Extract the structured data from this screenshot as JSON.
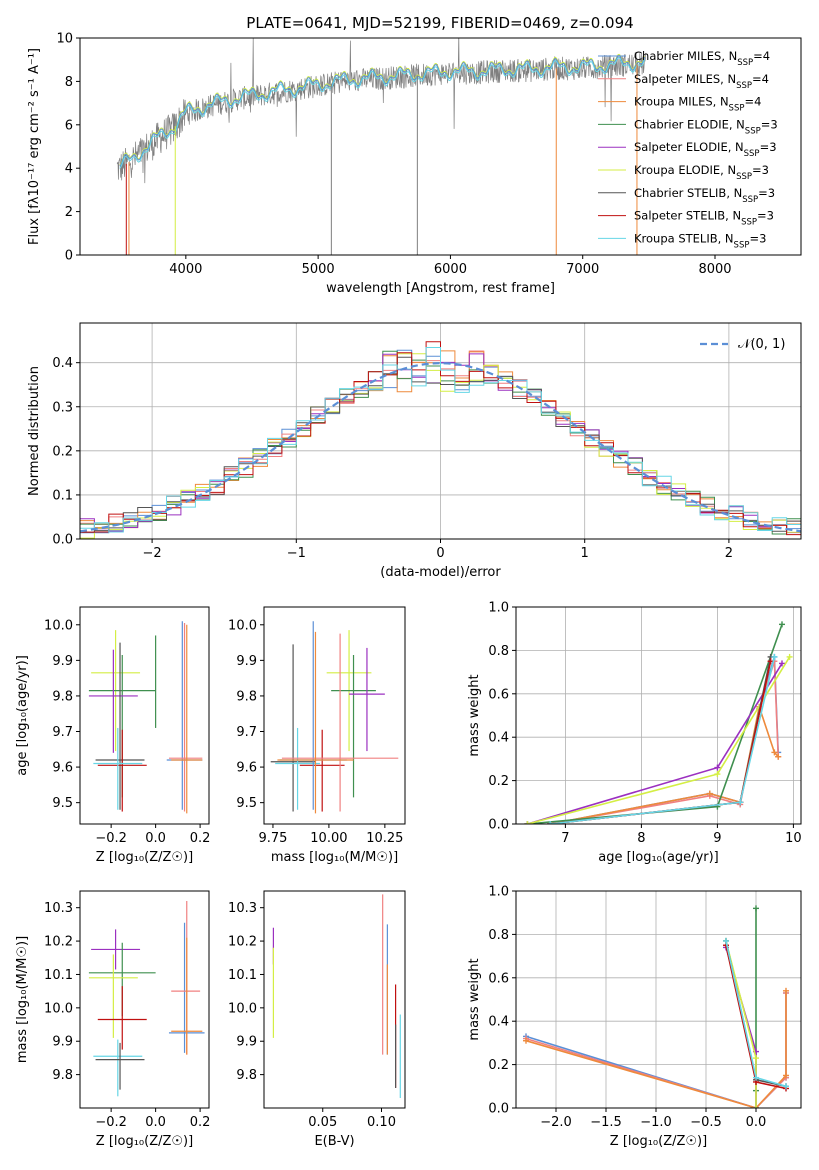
{
  "title": "PLATE=0641, MJD=52199, FIBERID=0469, z=0.094",
  "colors": {
    "Chabrier MILES": "#5b8fd6",
    "Salpeter MILES": "#f08080",
    "Kroupa MILES": "#ee8a3c",
    "Chabrier ELODIE": "#3f8f4f",
    "Salpeter ELODIE": "#9b30c0",
    "Kroupa ELODIE": "#d4ee44",
    "Chabrier STELIB": "#555555",
    "Salpeter STELIB": "#c01010",
    "Kroupa STELIB": "#66d6e6",
    "gaussian": "#5b8fd6"
  },
  "chart_data": [
    {
      "id": "spectrum",
      "type": "line",
      "xlabel": "wavelength [Angstrom, rest frame]",
      "ylabel": "Flux [fλ10⁻¹⁷ erg cm⁻² s⁻¹ A⁻¹]",
      "xlim": [
        3200,
        8650
      ],
      "ylim": [
        0,
        10
      ],
      "xticks": [
        4000,
        5000,
        6000,
        7000,
        8000
      ],
      "yticks": [
        0,
        2,
        4,
        6,
        8,
        10
      ],
      "grid": false,
      "legend_loc": "right",
      "legend": [
        {
          "name": "Chabrier MILES",
          "nssp": "4"
        },
        {
          "name": "Salpeter MILES",
          "nssp": "4"
        },
        {
          "name": "Kroupa MILES",
          "nssp": "4"
        },
        {
          "name": "Chabrier ELODIE",
          "nssp": "3"
        },
        {
          "name": "Salpeter ELODIE",
          "nssp": "3"
        },
        {
          "name": "Kroupa ELODIE",
          "nssp": "3"
        },
        {
          "name": "Chabrier STELIB",
          "nssp": "3"
        },
        {
          "name": "Salpeter STELIB",
          "nssp": "3"
        },
        {
          "name": "Kroupa STELIB",
          "nssp": "3"
        }
      ],
      "continuum": {
        "x": [
          3500,
          3600,
          3700,
          3800,
          3900,
          4000,
          4200,
          4400,
          4600,
          4800,
          5000,
          5200,
          5400,
          5600,
          5800,
          6000,
          6200,
          6400,
          6600,
          6800,
          7000,
          7200,
          7400,
          7500
        ],
        "y": [
          4.0,
          4.4,
          4.9,
          5.4,
          5.8,
          6.5,
          6.9,
          7.2,
          7.4,
          7.6,
          7.8,
          8.0,
          8.1,
          8.2,
          8.3,
          8.4,
          8.4,
          8.5,
          8.5,
          8.6,
          8.6,
          8.7,
          8.8,
          8.8
        ]
      }
    },
    {
      "id": "residuals",
      "type": "line",
      "xlabel": "(data-model)/error",
      "ylabel": "Normed distribution",
      "xlim": [
        -2.5,
        2.5
      ],
      "ylim": [
        0,
        0.49
      ],
      "xticks": [
        -2,
        -1,
        0,
        1,
        2
      ],
      "yticks": [
        0.0,
        0.1,
        0.2,
        0.3,
        0.4
      ],
      "grid": true,
      "legend_loc": "upper right",
      "gaussian_label": "𝒩(0, 1)"
    },
    {
      "id": "age_Z",
      "type": "scatter",
      "xlabel": "Z [log₁₀(Z/Z☉)]",
      "ylabel": "age  [log₁₀(age/yr)]",
      "xlim": [
        -0.34,
        0.24
      ],
      "ylim": [
        9.44,
        10.05
      ],
      "xticks": [
        -0.2,
        0.0,
        0.2
      ],
      "yticks": [
        9.5,
        9.6,
        9.7,
        9.8,
        9.9,
        10.0
      ],
      "grid": false,
      "points": [
        {
          "s": "Kroupa ELODIE",
          "x": -0.18,
          "y": 9.865,
          "xe": [
            0.11,
            0.11
          ],
          "ye": [
            0.22,
            0.12
          ]
        },
        {
          "s": "Chabrier ELODIE",
          "x": -0.15,
          "y": 9.815,
          "xe": [
            0.15,
            0.15
          ],
          "ye": [
            0.3,
            0.1
          ]
        },
        {
          "s": "Salpeter ELODIE",
          "x": -0.19,
          "y": 9.8,
          "xe": [
            0.11,
            0.11
          ],
          "ye": [
            0.16,
            0.13
          ]
        },
        {
          "s": "Chabrier STELIB",
          "x": -0.16,
          "y": 9.62,
          "xe": [
            0.11,
            0.11
          ],
          "ye": [
            0.14,
            0.33
          ]
        },
        {
          "s": "Salpeter STELIB",
          "x": -0.15,
          "y": 9.605,
          "xe": [
            0.11,
            0.11
          ],
          "ye": [
            0.13,
            0.1
          ]
        },
        {
          "s": "Kroupa STELIB",
          "x": -0.17,
          "y": 9.61,
          "xe": [
            0.11,
            0.11
          ],
          "ye": [
            0.13,
            0.1
          ]
        },
        {
          "s": "Chabrier MILES",
          "x": 0.12,
          "y": 9.62,
          "xe": [
            0.07,
            0.09
          ],
          "ye": [
            0.14,
            0.39
          ]
        },
        {
          "s": "Salpeter MILES",
          "x": 0.13,
          "y": 9.625,
          "xe": [
            0.07,
            0.08
          ],
          "ye": [
            0.15,
            0.38
          ]
        },
        {
          "s": "Kroupa MILES",
          "x": 0.14,
          "y": 9.62,
          "xe": [
            0.07,
            0.07
          ],
          "ye": [
            0.15,
            0.38
          ]
        },
        {
          "s": "Chabrier ELODIE",
          "x": 0.0,
          "y": 9.84,
          "xe": [
            0.0,
            0.0
          ],
          "ye": [
            0.13,
            0.13
          ]
        }
      ]
    },
    {
      "id": "age_mass",
      "type": "scatter",
      "xlabel": "mass [log₁₀(M/M☉)]",
      "ylabel": "",
      "xlim": [
        9.71,
        10.34
      ],
      "ylim": [
        9.44,
        10.05
      ],
      "xticks": [
        9.75,
        10.0,
        10.25
      ],
      "yticks": [
        9.5,
        9.6,
        9.7,
        9.8,
        9.9,
        10.0
      ],
      "grid": false,
      "points": [
        {
          "s": "Kroupa ELODIE",
          "x": 10.09,
          "y": 9.865,
          "xe": [
            0.1,
            0.1
          ],
          "ye": [
            0.22,
            0.12
          ]
        },
        {
          "s": "Chabrier ELODIE",
          "x": 10.11,
          "y": 9.815,
          "xe": [
            0.1,
            0.1
          ],
          "ye": [
            0.3,
            0.1
          ]
        },
        {
          "s": "Salpeter ELODIE",
          "x": 10.17,
          "y": 9.805,
          "xe": [
            0.08,
            0.08
          ],
          "ye": [
            0.16,
            0.13
          ]
        },
        {
          "s": "Chabrier STELIB",
          "x": 9.84,
          "y": 9.615,
          "xe": [
            0.1,
            0.1
          ],
          "ye": [
            0.14,
            0.33
          ]
        },
        {
          "s": "Salpeter STELIB",
          "x": 9.97,
          "y": 9.605,
          "xe": [
            0.1,
            0.1
          ],
          "ye": [
            0.13,
            0.1
          ]
        },
        {
          "s": "Kroupa STELIB",
          "x": 9.86,
          "y": 9.61,
          "xe": [
            0.1,
            0.1
          ],
          "ye": [
            0.13,
            0.1
          ]
        },
        {
          "s": "Chabrier MILES",
          "x": 9.93,
          "y": 9.62,
          "xe": [
            0.15,
            0.15
          ],
          "ye": [
            0.14,
            0.39
          ]
        },
        {
          "s": "Salpeter MILES",
          "x": 10.05,
          "y": 9.625,
          "xe": [
            0.26,
            0.26
          ],
          "ye": [
            0.15,
            0.35
          ]
        },
        {
          "s": "Kroupa MILES",
          "x": 9.94,
          "y": 9.62,
          "xe": [
            0.17,
            0.17
          ],
          "ye": [
            0.15,
            0.36
          ]
        }
      ]
    },
    {
      "id": "weight_age",
      "type": "line",
      "xlabel": "age  [log₁₀(age/yr)]",
      "ylabel": "mass weight",
      "xlim": [
        6.35,
        10.1
      ],
      "ylim": [
        0,
        1
      ],
      "xticks": [
        7,
        8,
        9,
        10
      ],
      "yticks": [
        0.0,
        0.2,
        0.4,
        0.6,
        0.8,
        1.0
      ],
      "grid": true,
      "series": [
        {
          "s": "Chabrier MILES",
          "x": [
            6.8,
            8.9,
            9.3,
            9.55,
            9.75,
            9.8
          ],
          "y": [
            0.0,
            0.14,
            0.1,
            0.53,
            0.77,
            0.33
          ]
        },
        {
          "s": "Salpeter MILES",
          "x": [
            6.8,
            8.9,
            9.3,
            9.55,
            9.75,
            9.8
          ],
          "y": [
            0.0,
            0.13,
            0.09,
            0.53,
            0.75,
            0.31
          ]
        },
        {
          "s": "Kroupa MILES",
          "x": [
            6.8,
            8.9,
            9.3,
            9.55,
            9.75,
            9.8
          ],
          "y": [
            0.0,
            0.14,
            0.1,
            0.54,
            0.33,
            0.31
          ]
        },
        {
          "s": "Chabrier ELODIE",
          "x": [
            6.5,
            9.0,
            9.85
          ],
          "y": [
            0.0,
            0.08,
            0.92
          ]
        },
        {
          "s": "Salpeter ELODIE",
          "x": [
            6.5,
            9.0,
            9.85
          ],
          "y": [
            0.0,
            0.26,
            0.74
          ]
        },
        {
          "s": "Kroupa ELODIE",
          "x": [
            6.5,
            9.0,
            9.95
          ],
          "y": [
            0.0,
            0.23,
            0.77
          ]
        },
        {
          "s": "Chabrier STELIB",
          "x": [
            6.8,
            9.3,
            9.7
          ],
          "y": [
            0.0,
            0.1,
            0.77
          ]
        },
        {
          "s": "Salpeter STELIB",
          "x": [
            6.8,
            9.3,
            9.7
          ],
          "y": [
            0.0,
            0.1,
            0.75
          ]
        },
        {
          "s": "Kroupa STELIB",
          "x": [
            6.8,
            9.3,
            9.75
          ],
          "y": [
            0.0,
            0.1,
            0.77
          ]
        }
      ]
    },
    {
      "id": "mass_Z",
      "type": "scatter",
      "xlabel": "Z [log₁₀(Z/Z☉)]",
      "ylabel": "mass [log₁₀(M/M☉)]",
      "xlim": [
        -0.34,
        0.24
      ],
      "ylim": [
        9.7,
        10.35
      ],
      "xticks": [
        -0.2,
        0.0,
        0.2
      ],
      "yticks": [
        9.8,
        9.9,
        10.0,
        10.1,
        10.2,
        10.3
      ],
      "grid": false,
      "points": [
        {
          "s": "Salpeter ELODIE",
          "x": -0.18,
          "y": 10.175,
          "xe": [
            0.11,
            0.11
          ],
          "ye": [
            0.06,
            0.06
          ]
        },
        {
          "s": "Chabrier ELODIE",
          "x": -0.15,
          "y": 10.105,
          "xe": [
            0.15,
            0.15
          ],
          "ye": [
            0.13,
            0.09
          ]
        },
        {
          "s": "Kroupa ELODIE",
          "x": -0.19,
          "y": 10.09,
          "xe": [
            0.11,
            0.11
          ],
          "ye": [
            0.18,
            0.07
          ]
        },
        {
          "s": "Salpeter STELIB",
          "x": -0.15,
          "y": 9.965,
          "xe": [
            0.11,
            0.11
          ],
          "ye": [
            0.09,
            0.1
          ]
        },
        {
          "s": "Kroupa STELIB",
          "x": -0.17,
          "y": 9.855,
          "xe": [
            0.11,
            0.11
          ],
          "ye": [
            0.12,
            0.05
          ]
        },
        {
          "s": "Chabrier STELIB",
          "x": -0.16,
          "y": 9.845,
          "xe": [
            0.11,
            0.11
          ],
          "ye": [
            0.09,
            0.05
          ]
        },
        {
          "s": "Chabrier MILES",
          "x": 0.13,
          "y": 9.925,
          "xe": [
            0.07,
            0.09
          ],
          "ye": [
            0.06,
            0.33
          ]
        },
        {
          "s": "Salpeter MILES",
          "x": 0.14,
          "y": 10.05,
          "xe": [
            0.07,
            0.06
          ],
          "ye": [
            0.19,
            0.27
          ]
        },
        {
          "s": "Kroupa MILES",
          "x": 0.14,
          "y": 9.93,
          "xe": [
            0.07,
            0.07
          ],
          "ye": [
            0.07,
            0.28
          ]
        }
      ]
    },
    {
      "id": "mass_ebv",
      "type": "scatter",
      "xlabel": "E(B-V)",
      "ylabel": "",
      "xlim": [
        0.0,
        0.12
      ],
      "ylim": [
        9.7,
        10.35
      ],
      "xticks": [
        0.05,
        0.1
      ],
      "yticks": [
        9.8,
        9.9,
        10.0,
        10.1,
        10.2,
        10.3
      ],
      "grid": false,
      "points": [
        {
          "s": "Salpeter ELODIE",
          "x": 0.008,
          "y": 10.18,
          "xe": [
            0,
            0
          ],
          "ye": [
            0.05,
            0.06
          ]
        },
        {
          "s": "Kroupa ELODIE",
          "x": 0.008,
          "y": 10.1,
          "xe": [
            0,
            0
          ],
          "ye": [
            0.19,
            0.08
          ]
        },
        {
          "s": "Salpeter MILES",
          "x": 0.101,
          "y": 10.05,
          "xe": [
            0,
            0
          ],
          "ye": [
            0.19,
            0.29
          ]
        },
        {
          "s": "Chabrier MILES",
          "x": 0.105,
          "y": 10.05,
          "xe": [
            0,
            0
          ],
          "ye": [
            0.19,
            0.2
          ]
        },
        {
          "s": "Kroupa MILES",
          "x": 0.105,
          "y": 9.95,
          "xe": [
            0,
            0
          ],
          "ye": [
            0.09,
            0.18
          ]
        },
        {
          "s": "Salpeter STELIB",
          "x": 0.112,
          "y": 9.91,
          "xe": [
            0,
            0
          ],
          "ye": [
            0.15,
            0.16
          ]
        },
        {
          "s": "Chabrier STELIB",
          "x": 0.112,
          "y": 9.85,
          "xe": [
            0,
            0
          ],
          "ye": [
            0.09,
            0.1
          ]
        },
        {
          "s": "Kroupa STELIB",
          "x": 0.116,
          "y": 9.85,
          "xe": [
            0,
            0
          ],
          "ye": [
            0.12,
            0.13
          ]
        }
      ]
    },
    {
      "id": "weight_Z",
      "type": "line",
      "xlabel": "Z [log₁₀(Z/Z☉)]",
      "ylabel": "mass weight",
      "xlim": [
        -2.4,
        0.45
      ],
      "ylim": [
        0,
        1
      ],
      "xticks": [
        -2.0,
        -1.5,
        -1.0,
        -0.5,
        0.0
      ],
      "yticks": [
        0.0,
        0.2,
        0.4,
        0.6,
        0.8,
        1.0
      ],
      "grid": true,
      "series": [
        {
          "s": "Chabrier MILES",
          "x": [
            -2.3,
            0.0,
            0.3,
            0.3
          ],
          "y": [
            0.33,
            0.0,
            0.14,
            0.53
          ]
        },
        {
          "s": "Salpeter MILES",
          "x": [
            -2.3,
            0.0,
            0.3,
            0.3
          ],
          "y": [
            0.32,
            0.0,
            0.14,
            0.53
          ]
        },
        {
          "s": "Kroupa MILES",
          "x": [
            -2.3,
            0.0,
            0.3,
            0.3
          ],
          "y": [
            0.31,
            0.0,
            0.15,
            0.54
          ]
        },
        {
          "s": "Chabrier ELODIE",
          "x": [
            0.0,
            0.0,
            0.0
          ],
          "y": [
            0.0,
            0.08,
            0.92
          ]
        },
        {
          "s": "Salpeter ELODIE",
          "x": [
            0.0,
            0.0,
            -0.3
          ],
          "y": [
            0.0,
            0.26,
            0.74
          ]
        },
        {
          "s": "Kroupa ELODIE",
          "x": [
            0.0,
            0.0,
            -0.3
          ],
          "y": [
            0.0,
            0.23,
            0.77
          ]
        },
        {
          "s": "Chabrier STELIB",
          "x": [
            -0.3,
            0.0,
            0.3
          ],
          "y": [
            0.77,
            0.13,
            0.1
          ]
        },
        {
          "s": "Salpeter STELIB",
          "x": [
            -0.3,
            0.0,
            0.3
          ],
          "y": [
            0.75,
            0.12,
            0.09
          ]
        },
        {
          "s": "Kroupa STELIB",
          "x": [
            -0.3,
            0.0,
            0.3
          ],
          "y": [
            0.77,
            0.14,
            0.1
          ]
        }
      ]
    }
  ]
}
